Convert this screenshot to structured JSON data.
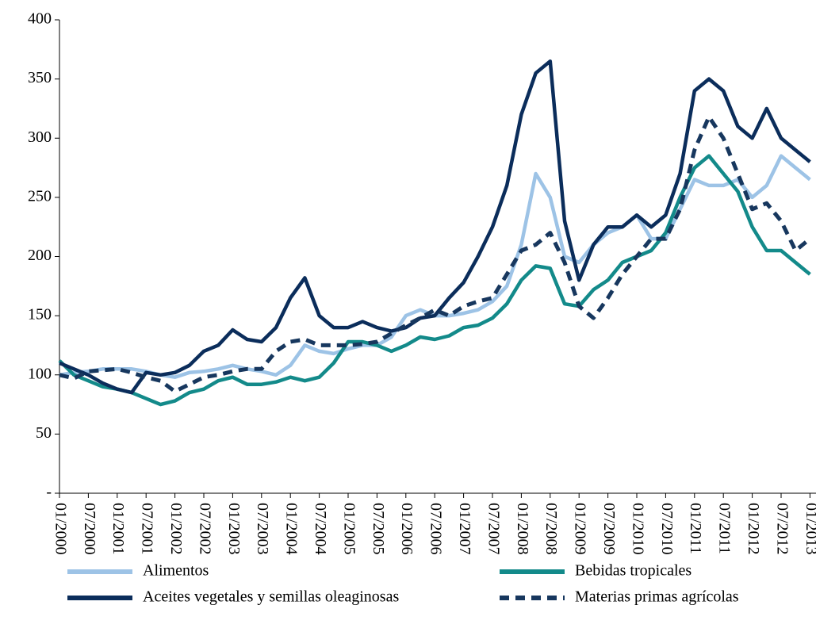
{
  "chart_data": {
    "type": "line",
    "categories": [
      "01/2000",
      null,
      "07/2000",
      null,
      "01/2001",
      null,
      "07/2001",
      null,
      "01/2002",
      null,
      "07/2002",
      null,
      "01/2003",
      null,
      "07/2003",
      null,
      "01/2004",
      null,
      "07/2004",
      null,
      "01/2005",
      null,
      "07/2005",
      null,
      "01/2006",
      null,
      "07/2006",
      null,
      "01/2007",
      null,
      "07/2007",
      null,
      "01/2008",
      null,
      "07/2008",
      null,
      "01/2009",
      null,
      "07/2009",
      null,
      "01/2010",
      null,
      "07/2010",
      null,
      "01/2011",
      null,
      "07/2011",
      null,
      "01/2012",
      null,
      "07/2012",
      null,
      "01/2013"
    ],
    "series": [
      {
        "name": "Alimentos",
        "color": "#9dc3e6",
        "dash": false,
        "values": [
          100,
          102,
          103,
          105,
          105,
          105,
          103,
          100,
          98,
          102,
          103,
          105,
          108,
          105,
          103,
          100,
          108,
          125,
          120,
          118,
          122,
          125,
          125,
          132,
          150,
          155,
          150,
          150,
          152,
          155,
          162,
          175,
          210,
          270,
          250,
          200,
          195,
          210,
          220,
          225,
          235,
          215,
          215,
          240,
          265,
          260,
          260,
          265,
          250,
          260,
          285,
          275,
          265
        ]
      },
      {
        "name": "Bebidas tropicales",
        "color": "#138a8a",
        "dash": false,
        "values": [
          112,
          100,
          95,
          90,
          88,
          85,
          80,
          75,
          78,
          85,
          88,
          95,
          98,
          92,
          92,
          94,
          98,
          95,
          98,
          110,
          128,
          128,
          125,
          120,
          125,
          132,
          130,
          133,
          140,
          142,
          148,
          160,
          180,
          192,
          190,
          160,
          158,
          172,
          180,
          195,
          200,
          205,
          220,
          250,
          275,
          285,
          270,
          255,
          225,
          205,
          205,
          195,
          185
        ]
      },
      {
        "name": "Aceites vegetales y semillas oleaginosas",
        "color": "#0b2d5b",
        "dash": false,
        "values": [
          110,
          105,
          100,
          93,
          88,
          85,
          102,
          100,
          102,
          108,
          120,
          125,
          138,
          130,
          128,
          140,
          165,
          182,
          150,
          140,
          140,
          145,
          140,
          137,
          140,
          148,
          150,
          165,
          178,
          200,
          225,
          260,
          320,
          355,
          365,
          230,
          180,
          210,
          225,
          225,
          235,
          225,
          235,
          270,
          340,
          350,
          340,
          310,
          300,
          325,
          300,
          290,
          280
        ]
      },
      {
        "name": "Materias primas agrícolas",
        "color": "#17375e",
        "dash": true,
        "values": [
          100,
          97,
          103,
          104,
          105,
          102,
          98,
          95,
          86,
          92,
          98,
          100,
          103,
          105,
          105,
          120,
          128,
          130,
          125,
          125,
          125,
          126,
          128,
          135,
          142,
          148,
          155,
          150,
          158,
          162,
          165,
          185,
          205,
          210,
          220,
          195,
          158,
          148,
          165,
          185,
          200,
          215,
          215,
          240,
          290,
          318,
          300,
          270,
          240,
          245,
          230,
          205,
          215
        ]
      }
    ],
    "ylim": [
      0,
      400
    ],
    "yticks": [
      {
        "value": 0,
        "label": "-"
      },
      50,
      100,
      150,
      200,
      250,
      300,
      350,
      400
    ]
  }
}
